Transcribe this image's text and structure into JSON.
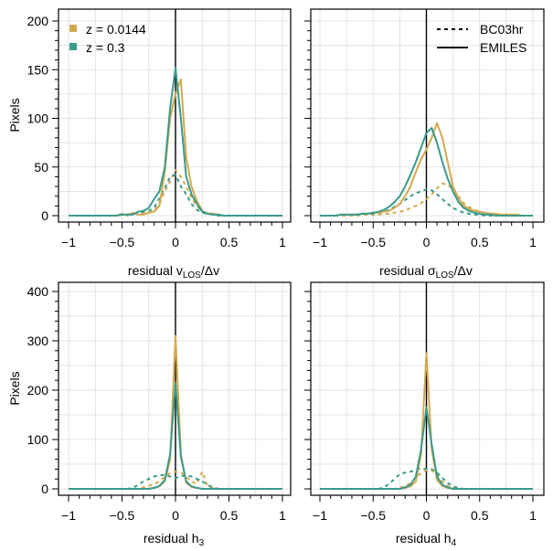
{
  "chart_data": [
    {
      "type": "line",
      "panel": "top-left",
      "xlim": [
        -1,
        1
      ],
      "ylim": [
        0,
        200
      ],
      "xticks": [
        -1,
        -0.5,
        0,
        0.5,
        1
      ],
      "xtick_labels": [
        "−1",
        "−0.5",
        "0",
        "0.5",
        "1"
      ],
      "yticks": [
        0,
        50,
        100,
        150,
        200
      ],
      "ytick_labels": [
        "0",
        "50",
        "100",
        "150",
        "200"
      ],
      "xlabel_main": "residual v",
      "xlabel_sub": "LOS",
      "xlabel_tail": "/Δv",
      "ylabel": "Pixels",
      "x": [
        -1,
        -0.95,
        -0.9,
        -0.85,
        -0.8,
        -0.75,
        -0.7,
        -0.65,
        -0.6,
        -0.55,
        -0.5,
        -0.45,
        -0.4,
        -0.35,
        -0.3,
        -0.25,
        -0.2,
        -0.15,
        -0.1,
        -0.05,
        0,
        0.05,
        0.1,
        0.15,
        0.2,
        0.25,
        0.3,
        0.35,
        0.4,
        0.45,
        0.5,
        0.55,
        0.6,
        0.65,
        0.7,
        0.75,
        0.8,
        0.85,
        0.9,
        0.95,
        1
      ],
      "series": [
        {
          "name": "z = 0.0144 EMILES",
          "style": "solid",
          "color": "#d4a94e",
          "values": [
            0,
            0,
            0,
            0,
            0,
            0,
            0,
            0,
            0,
            0,
            2,
            0,
            3,
            1,
            1,
            3,
            4,
            10,
            45,
            100,
            125,
            140,
            60,
            30,
            15,
            5,
            2,
            2,
            1,
            0,
            0,
            0,
            0,
            0,
            0,
            0,
            0,
            0,
            0,
            0,
            0
          ]
        },
        {
          "name": "z = 0.0144 BC03hr",
          "style": "dashed",
          "color": "#d4a94e",
          "values": [
            0,
            0,
            0,
            0,
            0,
            0,
            0,
            0,
            0,
            0,
            1,
            1,
            2,
            2,
            3,
            3,
            5,
            12,
            25,
            35,
            47,
            40,
            30,
            18,
            10,
            4,
            3,
            2,
            1,
            0,
            0,
            0,
            0,
            0,
            0,
            0,
            0,
            0,
            0,
            0,
            0
          ]
        },
        {
          "name": "z = 0.3 EMILES",
          "style": "solid",
          "color": "#3a9a8c",
          "values": [
            0,
            0,
            0,
            0,
            0,
            0,
            0,
            0,
            0,
            0,
            1,
            1,
            1,
            4,
            5,
            8,
            17,
            25,
            50,
            110,
            152,
            100,
            40,
            22,
            12,
            4,
            2,
            1,
            1,
            0,
            0,
            0,
            0,
            0,
            0,
            0,
            0,
            0,
            0,
            0,
            0
          ]
        },
        {
          "name": "z = 0.3 BC03hr",
          "style": "dashed",
          "color": "#3a9a8c",
          "values": [
            0,
            0,
            0,
            0,
            0,
            0,
            0,
            0,
            0,
            0,
            1,
            1,
            2,
            2,
            4,
            5,
            8,
            18,
            28,
            40,
            42,
            30,
            22,
            12,
            6,
            3,
            2,
            1,
            0,
            0,
            0,
            0,
            0,
            0,
            0,
            0,
            0,
            0,
            0,
            0,
            0
          ]
        }
      ],
      "legend": {
        "entries": [
          {
            "label": "z = 0.0144",
            "color": "#d4a94e"
          },
          {
            "label": "z = 0.3",
            "color": "#3a9a8c"
          }
        ],
        "position": "top-left"
      }
    },
    {
      "type": "line",
      "panel": "top-right",
      "xlim": [
        -1,
        1
      ],
      "ylim": [
        0,
        200
      ],
      "xticks": [
        -1,
        -0.5,
        0,
        0.5,
        1
      ],
      "xtick_labels": [
        "−1",
        "−0.5",
        "0",
        "0.5",
        "1"
      ],
      "yticks": [
        0,
        50,
        100,
        150,
        200
      ],
      "xlabel_main": "residual σ",
      "xlabel_sub": "LOS",
      "xlabel_tail": "/Δv",
      "x": [
        -1,
        -0.95,
        -0.9,
        -0.85,
        -0.8,
        -0.75,
        -0.7,
        -0.65,
        -0.6,
        -0.55,
        -0.5,
        -0.45,
        -0.4,
        -0.35,
        -0.3,
        -0.25,
        -0.2,
        -0.15,
        -0.1,
        -0.05,
        0,
        0.05,
        0.1,
        0.15,
        0.2,
        0.25,
        0.3,
        0.35,
        0.4,
        0.45,
        0.5,
        0.55,
        0.6,
        0.65,
        0.7,
        0.75,
        0.8,
        0.85,
        0.9,
        0.95,
        1
      ],
      "series": [
        {
          "name": "z = 0.0144 EMILES",
          "style": "solid",
          "color": "#d4a94e",
          "values": [
            0,
            0,
            0,
            0,
            1,
            1,
            1,
            1,
            2,
            2,
            3,
            3,
            4,
            5,
            8,
            12,
            20,
            30,
            45,
            58,
            68,
            80,
            95,
            80,
            55,
            30,
            18,
            10,
            7,
            5,
            4,
            3,
            2,
            2,
            1,
            1,
            1,
            1,
            0,
            0,
            0
          ]
        },
        {
          "name": "z = 0.0144 BC03hr",
          "style": "dashed",
          "color": "#d4a94e",
          "values": [
            0,
            0,
            0,
            0,
            0,
            0,
            0,
            0,
            1,
            1,
            1,
            1,
            2,
            2,
            3,
            4,
            5,
            8,
            10,
            13,
            17,
            22,
            28,
            33,
            32,
            27,
            20,
            13,
            9,
            6,
            4,
            3,
            2,
            2,
            1,
            1,
            1,
            0,
            0,
            0,
            0
          ]
        },
        {
          "name": "z = 0.3 EMILES",
          "style": "solid",
          "color": "#3a9a8c",
          "values": [
            0,
            0,
            0,
            0,
            1,
            1,
            1,
            1,
            2,
            2,
            3,
            4,
            6,
            9,
            14,
            20,
            30,
            42,
            55,
            70,
            85,
            90,
            75,
            55,
            38,
            25,
            14,
            8,
            5,
            3,
            2,
            1,
            1,
            0,
            0,
            0,
            0,
            0,
            0,
            0,
            0
          ]
        },
        {
          "name": "z = 0.3 BC03hr",
          "style": "dashed",
          "color": "#3a9a8c",
          "values": [
            0,
            0,
            0,
            0,
            1,
            1,
            1,
            1,
            2,
            2,
            2,
            3,
            4,
            6,
            9,
            12,
            16,
            20,
            23,
            25,
            27,
            26,
            22,
            17,
            12,
            8,
            5,
            3,
            2,
            1,
            1,
            0,
            0,
            0,
            0,
            0,
            0,
            0,
            0,
            0,
            0
          ]
        }
      ],
      "legend": {
        "entries": [
          {
            "label": "BC03hr",
            "style": "dashed"
          },
          {
            "label": "EMILES",
            "style": "solid"
          }
        ],
        "position": "top-right"
      }
    },
    {
      "type": "line",
      "panel": "bottom-left",
      "xlim": [
        -1,
        1
      ],
      "ylim": [
        0,
        400
      ],
      "xticks": [
        -1,
        -0.5,
        0,
        0.5,
        1
      ],
      "xtick_labels": [
        "−1",
        "−0.5",
        "0",
        "0.5",
        "1"
      ],
      "yticks": [
        0,
        100,
        200,
        300,
        400
      ],
      "ytick_labels": [
        "0",
        "100",
        "200",
        "300",
        "400"
      ],
      "xlabel_main": "residual h",
      "xlabel_sub": "3",
      "xlabel_tail": "",
      "ylabel": "Pixels",
      "x": [
        -1,
        -0.95,
        -0.9,
        -0.85,
        -0.8,
        -0.75,
        -0.7,
        -0.65,
        -0.6,
        -0.55,
        -0.5,
        -0.45,
        -0.4,
        -0.35,
        -0.3,
        -0.25,
        -0.2,
        -0.15,
        -0.1,
        -0.05,
        0,
        0.05,
        0.1,
        0.15,
        0.2,
        0.25,
        0.3,
        0.35,
        0.4,
        0.45,
        0.5,
        0.55,
        0.6,
        0.65,
        0.7,
        0.75,
        0.8,
        0.85,
        0.9,
        0.95,
        1
      ],
      "series": [
        {
          "name": "z = 0.0144 EMILES",
          "style": "solid",
          "color": "#d4a94e",
          "values": [
            0,
            0,
            0,
            0,
            0,
            0,
            0,
            0,
            0,
            0,
            0,
            0,
            0,
            0,
            0,
            0,
            2,
            5,
            15,
            60,
            310,
            70,
            12,
            4,
            2,
            0,
            0,
            0,
            0,
            0,
            0,
            0,
            0,
            0,
            0,
            0,
            0,
            0,
            0,
            0,
            0
          ]
        },
        {
          "name": "z = 0.0144 BC03hr",
          "style": "dashed",
          "color": "#d4a94e",
          "values": [
            0,
            0,
            0,
            0,
            0,
            0,
            0,
            0,
            0,
            0,
            0,
            0,
            0,
            0,
            3,
            6,
            10,
            15,
            25,
            32,
            35,
            33,
            25,
            15,
            10,
            35,
            5,
            2,
            0,
            0,
            0,
            0,
            0,
            0,
            0,
            0,
            0,
            0,
            0,
            0,
            0
          ]
        },
        {
          "name": "z = 0.3 EMILES",
          "style": "solid",
          "color": "#3a9a8c",
          "values": [
            0,
            0,
            0,
            0,
            0,
            0,
            0,
            0,
            0,
            0,
            0,
            0,
            0,
            0,
            0,
            0,
            2,
            6,
            18,
            70,
            215,
            65,
            15,
            5,
            2,
            0,
            0,
            0,
            0,
            0,
            0,
            0,
            0,
            0,
            0,
            0,
            0,
            0,
            0,
            0,
            0
          ]
        },
        {
          "name": "z = 0.3 BC03hr",
          "style": "dashed",
          "color": "#3a9a8c",
          "values": [
            0,
            0,
            0,
            0,
            0,
            0,
            0,
            0,
            0,
            0,
            0,
            0,
            2,
            8,
            15,
            20,
            25,
            28,
            28,
            25,
            22,
            25,
            28,
            25,
            20,
            15,
            8,
            3,
            0,
            0,
            0,
            0,
            0,
            0,
            0,
            0,
            0,
            0,
            0,
            0,
            0
          ]
        }
      ]
    },
    {
      "type": "line",
      "panel": "bottom-right",
      "xlim": [
        -1,
        1
      ],
      "ylim": [
        0,
        400
      ],
      "xticks": [
        -1,
        -0.5,
        0,
        0.5,
        1
      ],
      "xtick_labels": [
        "−1",
        "−0.5",
        "0",
        "0.5",
        "1"
      ],
      "yticks": [
        0,
        100,
        200,
        300,
        400
      ],
      "xlabel_main": "residual h",
      "xlabel_sub": "4",
      "xlabel_tail": "",
      "x": [
        -1,
        -0.95,
        -0.9,
        -0.85,
        -0.8,
        -0.75,
        -0.7,
        -0.65,
        -0.6,
        -0.55,
        -0.5,
        -0.45,
        -0.4,
        -0.35,
        -0.3,
        -0.25,
        -0.2,
        -0.15,
        -0.1,
        -0.05,
        0,
        0.05,
        0.1,
        0.15,
        0.2,
        0.25,
        0.3,
        0.35,
        0.4,
        0.45,
        0.5,
        0.55,
        0.6,
        0.65,
        0.7,
        0.75,
        0.8,
        0.85,
        0.9,
        0.95,
        1
      ],
      "series": [
        {
          "name": "z = 0.0144 EMILES",
          "style": "solid",
          "color": "#d4a94e",
          "values": [
            0,
            0,
            0,
            0,
            0,
            0,
            0,
            0,
            0,
            0,
            0,
            0,
            0,
            0,
            0,
            0,
            2,
            5,
            15,
            70,
            275,
            80,
            18,
            6,
            2,
            0,
            0,
            0,
            0,
            0,
            0,
            0,
            0,
            0,
            0,
            0,
            0,
            0,
            0,
            0,
            0
          ]
        },
        {
          "name": "z = 0.0144 BC03hr",
          "style": "dashed",
          "color": "#d4a94e",
          "values": [
            0,
            0,
            0,
            0,
            0,
            0,
            0,
            0,
            0,
            0,
            0,
            0,
            0,
            0,
            0,
            3,
            5,
            12,
            22,
            32,
            38,
            38,
            28,
            15,
            6,
            2,
            0,
            0,
            0,
            0,
            0,
            0,
            0,
            0,
            0,
            0,
            0,
            0,
            0,
            0,
            0
          ]
        },
        {
          "name": "z = 0.3 EMILES",
          "style": "solid",
          "color": "#3a9a8c",
          "values": [
            0,
            0,
            0,
            0,
            0,
            0,
            0,
            0,
            0,
            0,
            0,
            0,
            0,
            0,
            0,
            0,
            3,
            8,
            25,
            80,
            165,
            90,
            25,
            8,
            3,
            0,
            0,
            0,
            0,
            0,
            0,
            0,
            0,
            0,
            0,
            0,
            0,
            0,
            0,
            0,
            0
          ]
        },
        {
          "name": "z = 0.3 BC03hr",
          "style": "dashed",
          "color": "#3a9a8c",
          "values": [
            0,
            0,
            0,
            0,
            0,
            0,
            0,
            0,
            0,
            0,
            0,
            0,
            3,
            10,
            20,
            30,
            33,
            35,
            38,
            42,
            40,
            40,
            33,
            22,
            12,
            5,
            2,
            0,
            0,
            0,
            0,
            0,
            0,
            0,
            0,
            0,
            0,
            0,
            0,
            0,
            0
          ]
        }
      ]
    }
  ]
}
